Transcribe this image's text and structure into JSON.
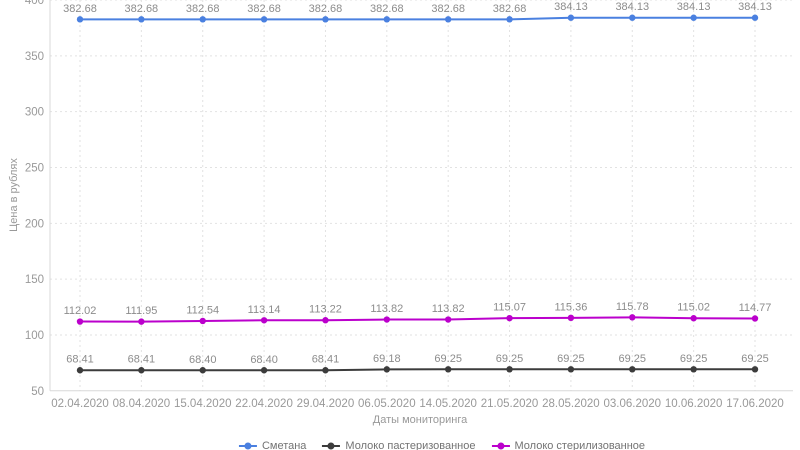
{
  "chart_data": {
    "type": "line",
    "title": "",
    "xlabel": "Даты мониторинга",
    "ylabel": "Цена в рублях",
    "ylim": [
      50,
      400
    ],
    "ytick_step": 50,
    "grid": true,
    "grid_style": "dashed",
    "legend_position": "bottom",
    "value_decimals": 2,
    "categories": [
      "02.04.2020",
      "08.04.2020",
      "15.04.2020",
      "22.04.2020",
      "29.04.2020",
      "06.05.2020",
      "14.05.2020",
      "21.05.2020",
      "28.05.2020",
      "03.06.2020",
      "10.06.2020",
      "17.06.2020"
    ],
    "series": [
      {
        "name": "Сметана",
        "color": "#4a80e0",
        "values": [
          382.68,
          382.68,
          382.68,
          382.68,
          382.68,
          382.68,
          382.68,
          382.68,
          384.13,
          384.13,
          384.13,
          384.13
        ]
      },
      {
        "name": "Молоко пастеризованное",
        "color": "#3c3c3c",
        "values": [
          68.41,
          68.41,
          68.4,
          68.4,
          68.41,
          69.18,
          69.25,
          69.25,
          69.25,
          69.25,
          69.25,
          69.25
        ]
      },
      {
        "name": "Молоко стерилизованное",
        "color": "#bb00cc",
        "values": [
          112.02,
          111.95,
          112.54,
          113.14,
          113.22,
          113.82,
          113.82,
          115.07,
          115.36,
          115.78,
          115.02,
          114.77
        ]
      }
    ]
  },
  "style": {
    "tick_label_color": "#999999",
    "data_label_color": "#8c8c8c",
    "axis_line_color": "#d8d8d8",
    "grid_line_color": "#e2e2e2"
  }
}
